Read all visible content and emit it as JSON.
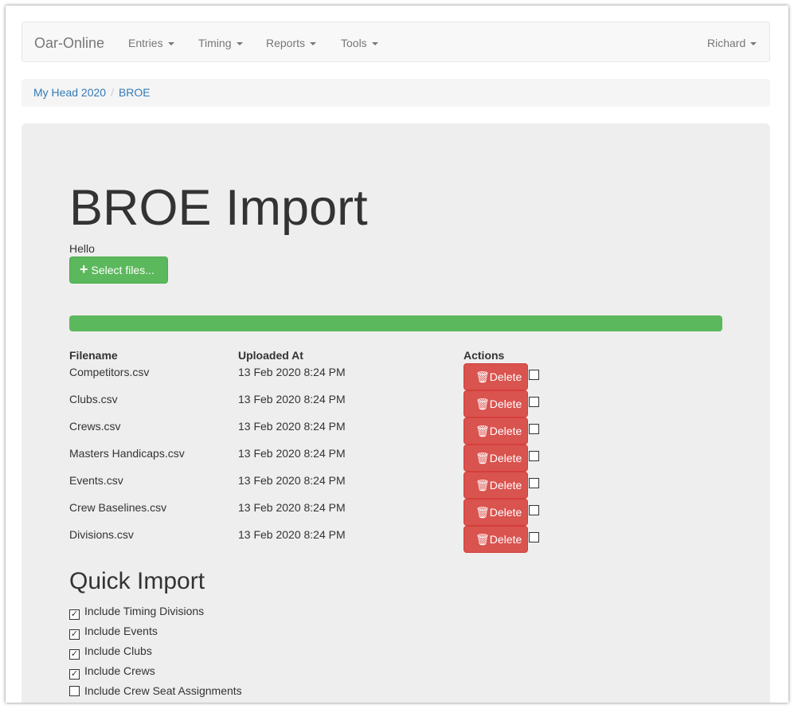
{
  "navbar": {
    "brand": "Oar-Online",
    "items": [
      "Entries",
      "Timing",
      "Reports",
      "Tools"
    ],
    "user": "Richard"
  },
  "breadcrumb": [
    "My Head 2020",
    "BROE"
  ],
  "main": {
    "title": "BROE Import",
    "greeting": "Hello",
    "select_files_label": "Select files...",
    "progress_percent": 100,
    "progress_color": "#5cb85c",
    "table": {
      "headers": [
        "Filename",
        "Uploaded At",
        "Actions"
      ],
      "delete_label": "Delete",
      "rows": [
        {
          "filename": "Competitors.csv",
          "uploaded": "13 Feb 2020 8:24 PM",
          "checked": false
        },
        {
          "filename": "Clubs.csv",
          "uploaded": "13 Feb 2020 8:24 PM",
          "checked": false
        },
        {
          "filename": "Crews.csv",
          "uploaded": "13 Feb 2020 8:24 PM",
          "checked": false
        },
        {
          "filename": "Masters Handicaps.csv",
          "uploaded": "13 Feb 2020 8:24 PM",
          "checked": false
        },
        {
          "filename": "Events.csv",
          "uploaded": "13 Feb 2020 8:24 PM",
          "checked": false
        },
        {
          "filename": "Crew Baselines.csv",
          "uploaded": "13 Feb 2020 8:24 PM",
          "checked": false
        },
        {
          "filename": "Divisions.csv",
          "uploaded": "13 Feb 2020 8:24 PM",
          "checked": false
        }
      ]
    },
    "quick_import": {
      "title": "Quick Import",
      "options": [
        {
          "label": "Include Timing Divisions",
          "checked": true
        },
        {
          "label": "Include Events",
          "checked": true
        },
        {
          "label": "Include Clubs",
          "checked": true
        },
        {
          "label": "Include Crews",
          "checked": true
        },
        {
          "label": "Include Crew Seat Assignments",
          "checked": false
        }
      ]
    }
  }
}
